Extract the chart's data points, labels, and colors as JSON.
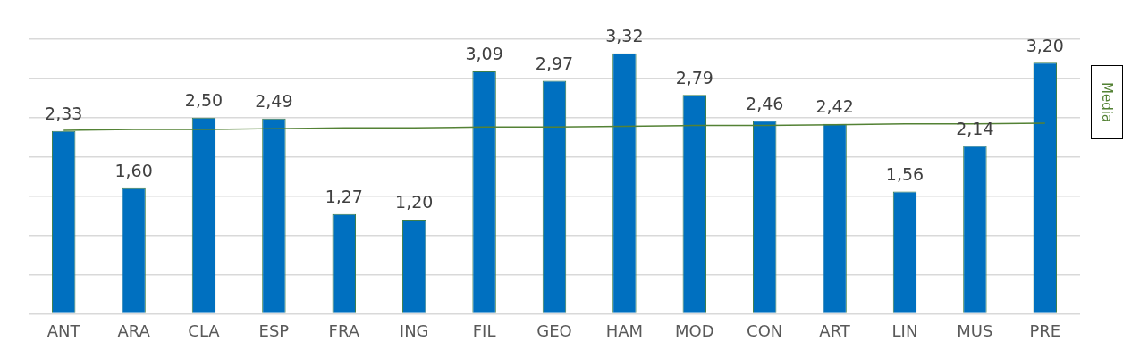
{
  "chart_data": {
    "type": "bar",
    "categories": [
      "ANT",
      "ARA",
      "CLA",
      "ESP",
      "FRA",
      "ING",
      "FIL",
      "GEO",
      "HAM",
      "MOD",
      "CON",
      "ART",
      "LIN",
      "MUS",
      "PRE"
    ],
    "series": [
      {
        "color": "#0070c0",
        "values": [
          2.33,
          1.6,
          2.5,
          2.49,
          1.27,
          1.2,
          3.09,
          2.97,
          3.32,
          2.79,
          2.46,
          2.42,
          1.56,
          2.14,
          3.2
        ],
        "value_labels": [
          "2,33",
          "1,60",
          "2,50",
          "2,49",
          "1,27",
          "1,20",
          "3,09",
          "2,97",
          "3,32",
          "2,79",
          "2,46",
          "2,42",
          "1,56",
          "2,14",
          "3,20"
        ]
      },
      {
        "type": "line",
        "name": "Media",
        "color": "#548235",
        "values": [
          2.34,
          2.35,
          2.35,
          2.36,
          2.37,
          2.37,
          2.38,
          2.38,
          2.39,
          2.4,
          2.4,
          2.41,
          2.42,
          2.42,
          2.43
        ]
      }
    ],
    "ylim": [
      0,
      3.5
    ],
    "yticks": [
      {
        "value": 0,
        "label": null
      },
      {
        "value": 0.5,
        "label": null
      },
      {
        "value": 1,
        "label": null
      },
      {
        "value": 1.5,
        "label": null
      },
      {
        "value": 2,
        "label": null
      },
      {
        "value": 2.5,
        "label": null
      },
      {
        "value": 3,
        "label": null
      },
      {
        "value": 3.5,
        "label": null
      }
    ],
    "tick_labels": "x",
    "grid": "y",
    "legend": "right",
    "marker": "none"
  }
}
